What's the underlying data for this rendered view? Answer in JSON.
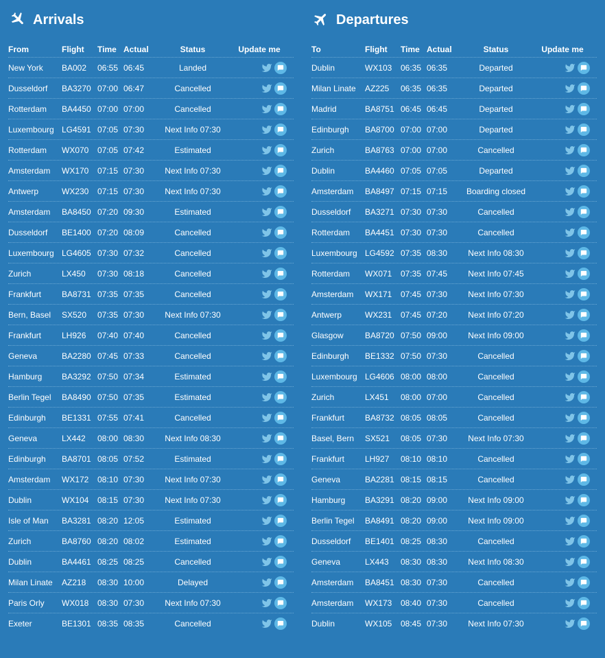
{
  "colors": {
    "background": "#2a7bb8",
    "text": "#ffffff",
    "row_border": "#6ba8d4",
    "twitter_icon": "#7fc4e8",
    "chat_bg": "#5eb8e6"
  },
  "panels": [
    {
      "key": "arrivals",
      "title": "Arrivals",
      "icon": "arrivals-icon",
      "loc_header": "From",
      "headers": {
        "flight": "Flight",
        "time": "Time",
        "actual": "Actual",
        "status": "Status",
        "update": "Update me"
      },
      "rows": [
        {
          "loc": "New York",
          "flight": "BA002",
          "time": "06:55",
          "actual": "06:45",
          "status": "Landed"
        },
        {
          "loc": "Dusseldorf",
          "flight": "BA3270",
          "time": "07:00",
          "actual": "06:47",
          "status": "Cancelled"
        },
        {
          "loc": "Rotterdam",
          "flight": "BA4450",
          "time": "07:00",
          "actual": "07:00",
          "status": "Cancelled"
        },
        {
          "loc": "Luxembourg",
          "flight": "LG4591",
          "time": "07:05",
          "actual": "07:30",
          "status": "Next Info 07:30"
        },
        {
          "loc": "Rotterdam",
          "flight": "WX070",
          "time": "07:05",
          "actual": "07:42",
          "status": "Estimated"
        },
        {
          "loc": "Amsterdam",
          "flight": "WX170",
          "time": "07:15",
          "actual": "07:30",
          "status": "Next Info 07:30"
        },
        {
          "loc": "Antwerp",
          "flight": "WX230",
          "time": "07:15",
          "actual": "07:30",
          "status": "Next Info 07:30"
        },
        {
          "loc": "Amsterdam",
          "flight": "BA8450",
          "time": "07:20",
          "actual": "09:30",
          "status": "Estimated"
        },
        {
          "loc": "Dusseldorf",
          "flight": "BE1400",
          "time": "07:20",
          "actual": "08:09",
          "status": "Cancelled"
        },
        {
          "loc": "Luxembourg",
          "flight": "LG4605",
          "time": "07:30",
          "actual": "07:32",
          "status": "Cancelled"
        },
        {
          "loc": "Zurich",
          "flight": "LX450",
          "time": "07:30",
          "actual": "08:18",
          "status": "Cancelled"
        },
        {
          "loc": "Frankfurt",
          "flight": "BA8731",
          "time": "07:35",
          "actual": "07:35",
          "status": "Cancelled"
        },
        {
          "loc": "Bern, Basel",
          "flight": "SX520",
          "time": "07:35",
          "actual": "07:30",
          "status": "Next Info 07:30"
        },
        {
          "loc": "Frankfurt",
          "flight": "LH926",
          "time": "07:40",
          "actual": "07:40",
          "status": "Cancelled"
        },
        {
          "loc": "Geneva",
          "flight": "BA2280",
          "time": "07:45",
          "actual": "07:33",
          "status": "Cancelled"
        },
        {
          "loc": "Hamburg",
          "flight": "BA3292",
          "time": "07:50",
          "actual": "07:34",
          "status": "Estimated"
        },
        {
          "loc": "Berlin Tegel",
          "flight": "BA8490",
          "time": "07:50",
          "actual": "07:35",
          "status": "Estimated"
        },
        {
          "loc": "Edinburgh",
          "flight": "BE1331",
          "time": "07:55",
          "actual": "07:41",
          "status": "Cancelled"
        },
        {
          "loc": "Geneva",
          "flight": "LX442",
          "time": "08:00",
          "actual": "08:30",
          "status": "Next Info 08:30"
        },
        {
          "loc": "Edinburgh",
          "flight": "BA8701",
          "time": "08:05",
          "actual": "07:52",
          "status": "Estimated"
        },
        {
          "loc": "Amsterdam",
          "flight": "WX172",
          "time": "08:10",
          "actual": "07:30",
          "status": "Next Info 07:30"
        },
        {
          "loc": "Dublin",
          "flight": "WX104",
          "time": "08:15",
          "actual": "07:30",
          "status": "Next Info 07:30"
        },
        {
          "loc": "Isle of Man",
          "flight": "BA3281",
          "time": "08:20",
          "actual": "12:05",
          "status": "Estimated"
        },
        {
          "loc": "Zurich",
          "flight": "BA8760",
          "time": "08:20",
          "actual": "08:02",
          "status": "Estimated"
        },
        {
          "loc": "Dublin",
          "flight": "BA4461",
          "time": "08:25",
          "actual": "08:25",
          "status": "Cancelled"
        },
        {
          "loc": "Milan Linate",
          "flight": "AZ218",
          "time": "08:30",
          "actual": "10:00",
          "status": "Delayed"
        },
        {
          "loc": "Paris Orly",
          "flight": "WX018",
          "time": "08:30",
          "actual": "07:30",
          "status": "Next Info 07:30"
        },
        {
          "loc": "Exeter",
          "flight": "BE1301",
          "time": "08:35",
          "actual": "08:35",
          "status": "Cancelled"
        }
      ]
    },
    {
      "key": "departures",
      "title": "Departures",
      "icon": "departures-icon",
      "loc_header": "To",
      "headers": {
        "flight": "Flight",
        "time": "Time",
        "actual": "Actual",
        "status": "Status",
        "update": "Update me"
      },
      "rows": [
        {
          "loc": "Dublin",
          "flight": "WX103",
          "time": "06:35",
          "actual": "06:35",
          "status": "Departed"
        },
        {
          "loc": "Milan Linate",
          "flight": "AZ225",
          "time": "06:35",
          "actual": "06:35",
          "status": "Departed"
        },
        {
          "loc": "Madrid",
          "flight": "BA8751",
          "time": "06:45",
          "actual": "06:45",
          "status": "Departed"
        },
        {
          "loc": "Edinburgh",
          "flight": "BA8700",
          "time": "07:00",
          "actual": "07:00",
          "status": "Departed"
        },
        {
          "loc": "Zurich",
          "flight": "BA8763",
          "time": "07:00",
          "actual": "07:00",
          "status": "Cancelled"
        },
        {
          "loc": "Dublin",
          "flight": "BA4460",
          "time": "07:05",
          "actual": "07:05",
          "status": "Departed"
        },
        {
          "loc": "Amsterdam",
          "flight": "BA8497",
          "time": "07:15",
          "actual": "07:15",
          "status": "Boarding closed"
        },
        {
          "loc": "Dusseldorf",
          "flight": "BA3271",
          "time": "07:30",
          "actual": "07:30",
          "status": "Cancelled"
        },
        {
          "loc": "Rotterdam",
          "flight": "BA4451",
          "time": "07:30",
          "actual": "07:30",
          "status": "Cancelled"
        },
        {
          "loc": "Luxembourg",
          "flight": "LG4592",
          "time": "07:35",
          "actual": "08:30",
          "status": "Next Info 08:30"
        },
        {
          "loc": "Rotterdam",
          "flight": "WX071",
          "time": "07:35",
          "actual": "07:45",
          "status": "Next Info 07:45"
        },
        {
          "loc": "Amsterdam",
          "flight": "WX171",
          "time": "07:45",
          "actual": "07:30",
          "status": "Next Info 07:30"
        },
        {
          "loc": "Antwerp",
          "flight": "WX231",
          "time": "07:45",
          "actual": "07:20",
          "status": "Next Info 07:20"
        },
        {
          "loc": "Glasgow",
          "flight": "BA8720",
          "time": "07:50",
          "actual": "09:00",
          "status": "Next Info 09:00"
        },
        {
          "loc": "Edinburgh",
          "flight": "BE1332",
          "time": "07:50",
          "actual": "07:30",
          "status": "Cancelled"
        },
        {
          "loc": "Luxembourg",
          "flight": "LG4606",
          "time": "08:00",
          "actual": "08:00",
          "status": "Cancelled"
        },
        {
          "loc": "Zurich",
          "flight": "LX451",
          "time": "08:00",
          "actual": "07:00",
          "status": "Cancelled"
        },
        {
          "loc": "Frankfurt",
          "flight": "BA8732",
          "time": "08:05",
          "actual": "08:05",
          "status": "Cancelled"
        },
        {
          "loc": "Basel, Bern",
          "flight": "SX521",
          "time": "08:05",
          "actual": "07:30",
          "status": "Next Info 07:30"
        },
        {
          "loc": "Frankfurt",
          "flight": "LH927",
          "time": "08:10",
          "actual": "08:10",
          "status": "Cancelled"
        },
        {
          "loc": "Geneva",
          "flight": "BA2281",
          "time": "08:15",
          "actual": "08:15",
          "status": "Cancelled"
        },
        {
          "loc": "Hamburg",
          "flight": "BA3291",
          "time": "08:20",
          "actual": "09:00",
          "status": "Next Info 09:00"
        },
        {
          "loc": "Berlin Tegel",
          "flight": "BA8491",
          "time": "08:20",
          "actual": "09:00",
          "status": "Next Info 09:00"
        },
        {
          "loc": "Dusseldorf",
          "flight": "BE1401",
          "time": "08:25",
          "actual": "08:30",
          "status": "Cancelled"
        },
        {
          "loc": "Geneva",
          "flight": "LX443",
          "time": "08:30",
          "actual": "08:30",
          "status": "Next Info 08:30"
        },
        {
          "loc": "Amsterdam",
          "flight": "BA8451",
          "time": "08:30",
          "actual": "07:30",
          "status": "Cancelled"
        },
        {
          "loc": "Amsterdam",
          "flight": "WX173",
          "time": "08:40",
          "actual": "07:30",
          "status": "Cancelled"
        },
        {
          "loc": "Dublin",
          "flight": "WX105",
          "time": "08:45",
          "actual": "07:30",
          "status": "Next Info 07:30"
        }
      ]
    }
  ]
}
